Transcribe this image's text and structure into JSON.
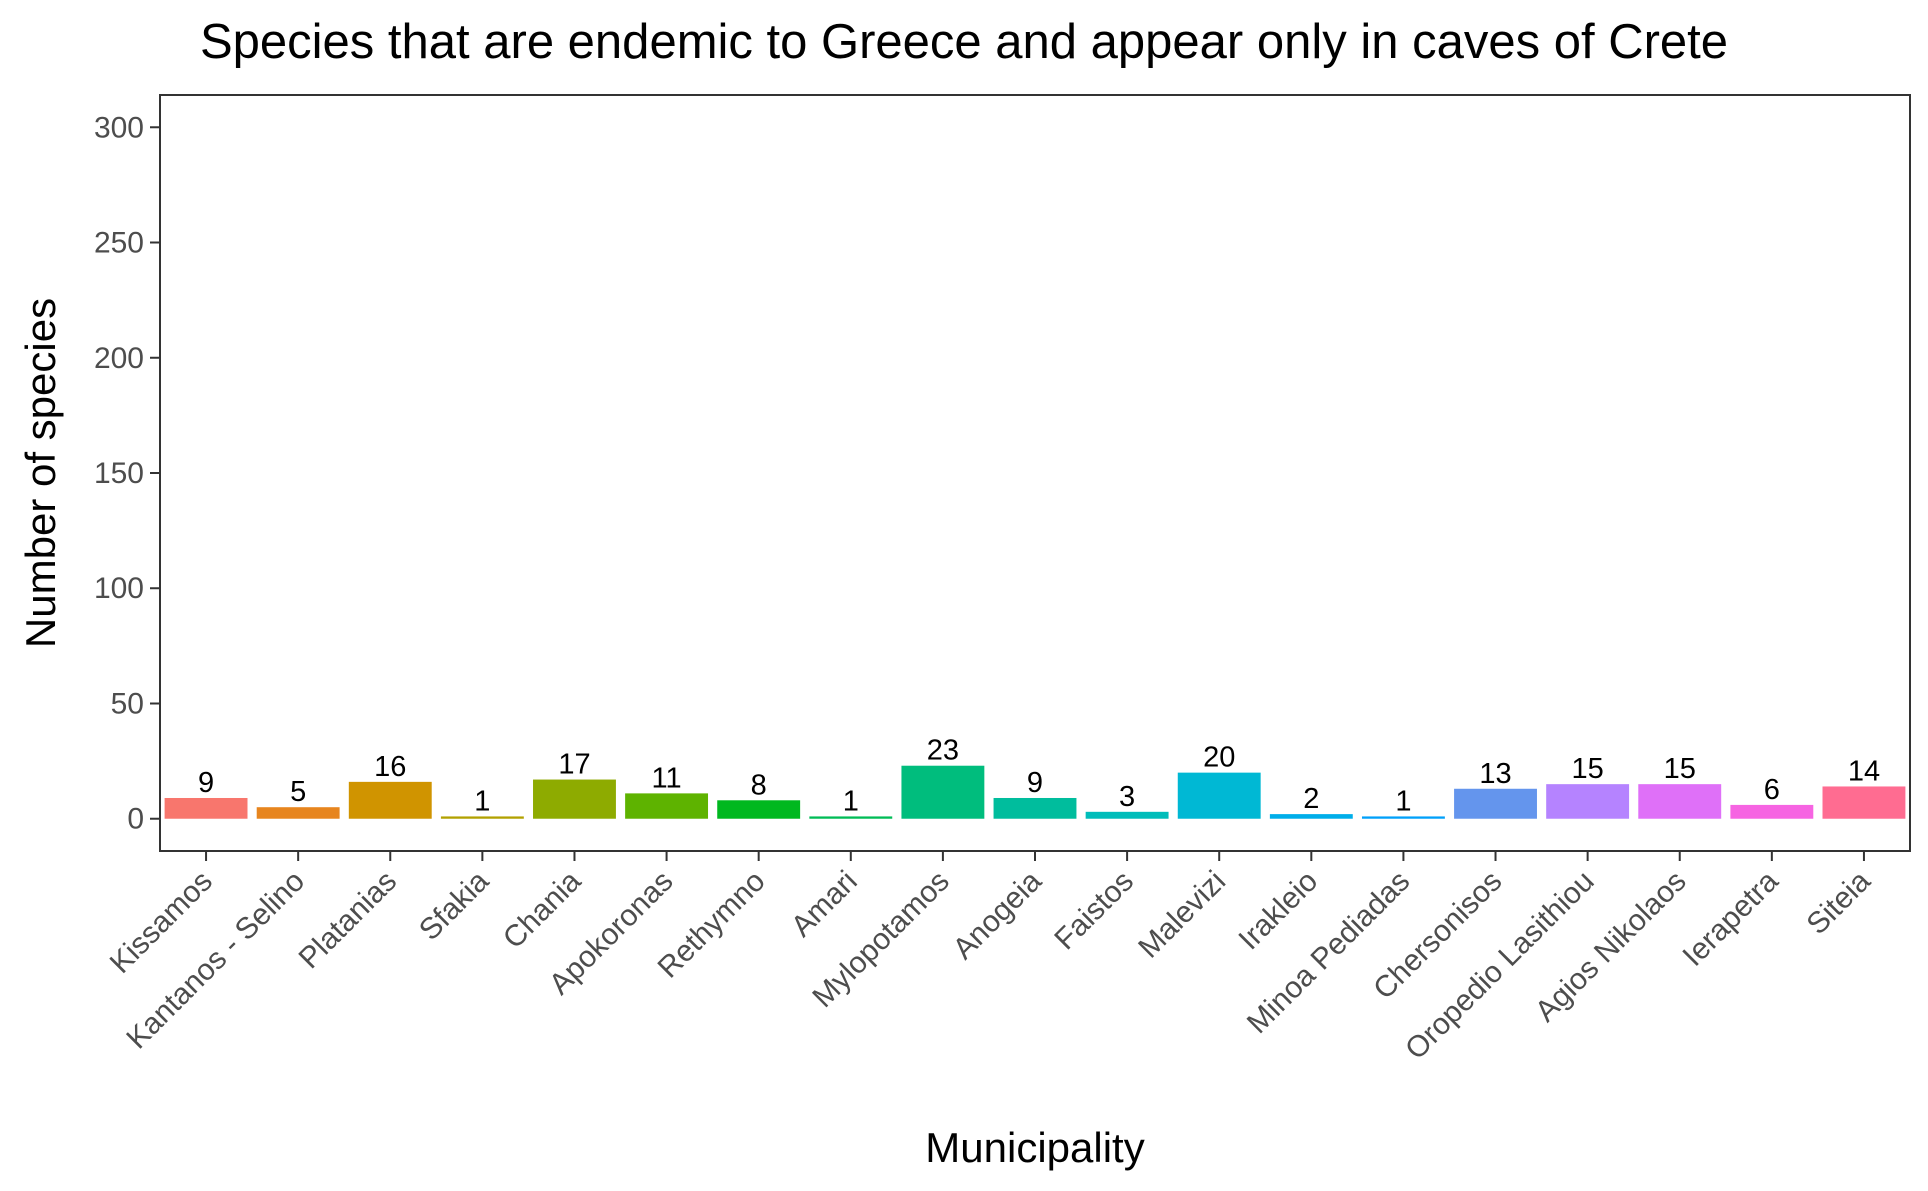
{
  "chart_data": {
    "type": "bar",
    "title": "Species that are endemic to Greece and appear only in caves of Crete",
    "xlabel": "Municipality",
    "ylabel": "Number of species",
    "ylim": [
      -14,
      314
    ],
    "yticks": [
      0,
      50,
      100,
      150,
      200,
      250,
      300
    ],
    "grid": false,
    "legend": "none",
    "categories": [
      "Kissamos",
      "Kantanos - Selino",
      "Platanias",
      "Sfakia",
      "Chania",
      "Apokoronas",
      "Rethymno",
      "Amari",
      "Mylopotamos",
      "Anogeia",
      "Faistos",
      "Malevizi",
      "Irakleio",
      "Minoa Pediadas",
      "Chersonisos",
      "Oropedio Lasithiou",
      "Agios Nikolaos",
      "Ierapetra",
      "Siteia"
    ],
    "values": [
      9,
      5,
      16,
      1,
      17,
      11,
      8,
      1,
      23,
      9,
      3,
      20,
      2,
      1,
      13,
      15,
      15,
      6,
      14
    ],
    "colors": [
      "#F8766D",
      "#E7851E",
      "#D09400",
      "#B2A100",
      "#8EAB00",
      "#5EB300",
      "#00B81F",
      "#00BC56",
      "#00BD7D",
      "#00BD9D",
      "#00BDBA",
      "#00B8D4",
      "#00AEEA",
      "#00A0FA",
      "#6495ED",
      "#B583FF",
      "#DF70F8",
      "#F664E2",
      "#FF6C91"
    ]
  }
}
